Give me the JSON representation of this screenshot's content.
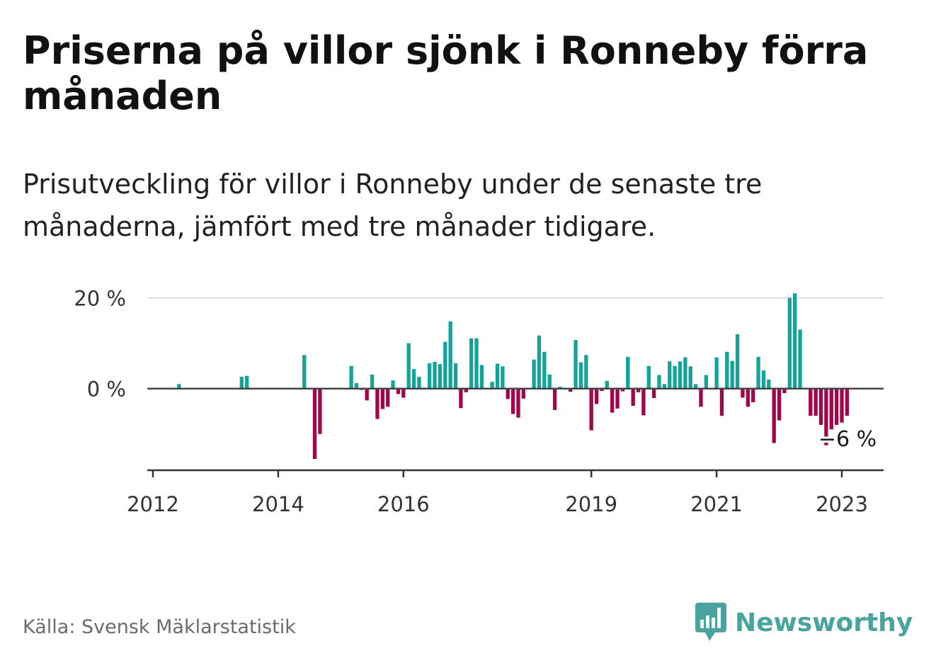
{
  "title": "Priserna på villor sjönk i Ronneby förra månaden",
  "subtitle": "Prisutveckling för villor i Ronneby under de senaste tre månaderna, jämfört med tre månader tidigare.",
  "source": "Källa: Svensk Mäklarstatistik",
  "brand": "Newsworthy",
  "colors": {
    "positive": "#13a398",
    "negative": "#a0064a",
    "grid": "#dddddd",
    "zero_line": "#444444",
    "brand": "#49a39e"
  },
  "chart_data": {
    "type": "bar",
    "xlabel": "",
    "ylabel": "",
    "ylim": [
      -18,
      21.5
    ],
    "y_ticks": [
      {
        "value": 0,
        "label": "0 %"
      },
      {
        "value": 20,
        "label": "20 %"
      }
    ],
    "x_ticks": [
      {
        "label": "2012",
        "date": "2012-01"
      },
      {
        "label": "2014",
        "date": "2014-01"
      },
      {
        "label": "2016",
        "date": "2016-01"
      },
      {
        "label": "2019",
        "date": "2019-01"
      },
      {
        "label": "2021",
        "date": "2021-01"
      },
      {
        "label": "2023",
        "date": "2023-01"
      }
    ],
    "annotation": {
      "label": "−6 %",
      "date": "2023-01"
    },
    "series": [
      {
        "values": [
          {
            "date": "2012-06",
            "value": 1.0
          },
          {
            "date": "2013-06",
            "value": 2.6
          },
          {
            "date": "2013-07",
            "value": 2.8
          },
          {
            "date": "2014-06",
            "value": 7.4
          },
          {
            "date": "2014-08",
            "value": -15.5
          },
          {
            "date": "2014-09",
            "value": -10.0
          },
          {
            "date": "2015-03",
            "value": 5.0
          },
          {
            "date": "2015-04",
            "value": 1.2
          },
          {
            "date": "2015-05",
            "value": -0.3
          },
          {
            "date": "2015-06",
            "value": -2.6
          },
          {
            "date": "2015-07",
            "value": 3.1
          },
          {
            "date": "2015-08",
            "value": -6.7
          },
          {
            "date": "2015-09",
            "value": -4.5
          },
          {
            "date": "2015-10",
            "value": -4.0
          },
          {
            "date": "2015-11",
            "value": 1.8
          },
          {
            "date": "2015-12",
            "value": -1.2
          },
          {
            "date": "2016-01",
            "value": -2.0
          },
          {
            "date": "2016-02",
            "value": 10.0
          },
          {
            "date": "2016-03",
            "value": 4.3
          },
          {
            "date": "2016-04",
            "value": 2.6
          },
          {
            "date": "2016-05",
            "value": 0.2
          },
          {
            "date": "2016-06",
            "value": 5.6
          },
          {
            "date": "2016-07",
            "value": 5.9
          },
          {
            "date": "2016-08",
            "value": 5.4
          },
          {
            "date": "2016-09",
            "value": 10.3
          },
          {
            "date": "2016-10",
            "value": 14.8
          },
          {
            "date": "2016-11",
            "value": 5.6
          },
          {
            "date": "2016-12",
            "value": -4.3
          },
          {
            "date": "2017-01",
            "value": -0.8
          },
          {
            "date": "2017-02",
            "value": 11.1
          },
          {
            "date": "2017-03",
            "value": 11.1
          },
          {
            "date": "2017-04",
            "value": 5.2
          },
          {
            "date": "2017-05",
            "value": -0.2
          },
          {
            "date": "2017-06",
            "value": 1.5
          },
          {
            "date": "2017-07",
            "value": 5.5
          },
          {
            "date": "2017-08",
            "value": 4.9
          },
          {
            "date": "2017-09",
            "value": -2.3
          },
          {
            "date": "2017-10",
            "value": -5.6
          },
          {
            "date": "2017-11",
            "value": -6.4
          },
          {
            "date": "2017-12",
            "value": -2.2
          },
          {
            "date": "2018-01",
            "value": -0.2
          },
          {
            "date": "2018-02",
            "value": 6.4
          },
          {
            "date": "2018-03",
            "value": 11.7
          },
          {
            "date": "2018-04",
            "value": 8.1
          },
          {
            "date": "2018-05",
            "value": 3.1
          },
          {
            "date": "2018-06",
            "value": -4.7
          },
          {
            "date": "2018-07",
            "value": 0.4
          },
          {
            "date": "2018-08",
            "value": 0.2
          },
          {
            "date": "2018-09",
            "value": -0.7
          },
          {
            "date": "2018-10",
            "value": 10.7
          },
          {
            "date": "2018-11",
            "value": 5.8
          },
          {
            "date": "2018-12",
            "value": 7.4
          },
          {
            "date": "2019-01",
            "value": -9.2
          },
          {
            "date": "2019-02",
            "value": -3.4
          },
          {
            "date": "2019-03",
            "value": -0.5
          },
          {
            "date": "2019-04",
            "value": 1.7
          },
          {
            "date": "2019-05",
            "value": -5.3
          },
          {
            "date": "2019-06",
            "value": -4.4
          },
          {
            "date": "2019-07",
            "value": -0.6
          },
          {
            "date": "2019-08",
            "value": 7.0
          },
          {
            "date": "2019-09",
            "value": -3.8
          },
          {
            "date": "2019-10",
            "value": -0.8
          },
          {
            "date": "2019-11",
            "value": -5.9
          },
          {
            "date": "2019-12",
            "value": 5.0
          },
          {
            "date": "2020-01",
            "value": -2.1
          },
          {
            "date": "2020-02",
            "value": 3.0
          },
          {
            "date": "2020-03",
            "value": 1.0
          },
          {
            "date": "2020-04",
            "value": 6.0
          },
          {
            "date": "2020-05",
            "value": 5.0
          },
          {
            "date": "2020-06",
            "value": 6.0
          },
          {
            "date": "2020-07",
            "value": 6.9
          },
          {
            "date": "2020-08",
            "value": 4.9
          },
          {
            "date": "2020-09",
            "value": 1.0
          },
          {
            "date": "2020-10",
            "value": -4.0
          },
          {
            "date": "2020-11",
            "value": 3.0
          },
          {
            "date": "2021-01",
            "value": 6.9
          },
          {
            "date": "2021-02",
            "value": -6.0
          },
          {
            "date": "2021-03",
            "value": 8.1
          },
          {
            "date": "2021-04",
            "value": 6.1
          },
          {
            "date": "2021-05",
            "value": 12.0
          },
          {
            "date": "2021-06",
            "value": -2.0
          },
          {
            "date": "2021-07",
            "value": -4.0
          },
          {
            "date": "2021-08",
            "value": -3.0
          },
          {
            "date": "2021-09",
            "value": 7.0
          },
          {
            "date": "2021-10",
            "value": 4.0
          },
          {
            "date": "2021-11",
            "value": 2.0
          },
          {
            "date": "2021-12",
            "value": -12.0
          },
          {
            "date": "2022-01",
            "value": -7.0
          },
          {
            "date": "2022-02",
            "value": -1.0
          },
          {
            "date": "2022-03",
            "value": 20.0
          },
          {
            "date": "2022-04",
            "value": 21.0
          },
          {
            "date": "2022-05",
            "value": 13.0
          },
          {
            "date": "2022-07",
            "value": -6.0
          },
          {
            "date": "2022-08",
            "value": -6.0
          },
          {
            "date": "2022-09",
            "value": -8.0
          },
          {
            "date": "2022-10",
            "value": -12.5
          },
          {
            "date": "2022-11",
            "value": -9.0
          },
          {
            "date": "2022-12",
            "value": -8.0
          },
          {
            "date": "2023-01",
            "value": -7.5
          },
          {
            "date": "2023-02",
            "value": -6.0
          }
        ]
      }
    ]
  }
}
